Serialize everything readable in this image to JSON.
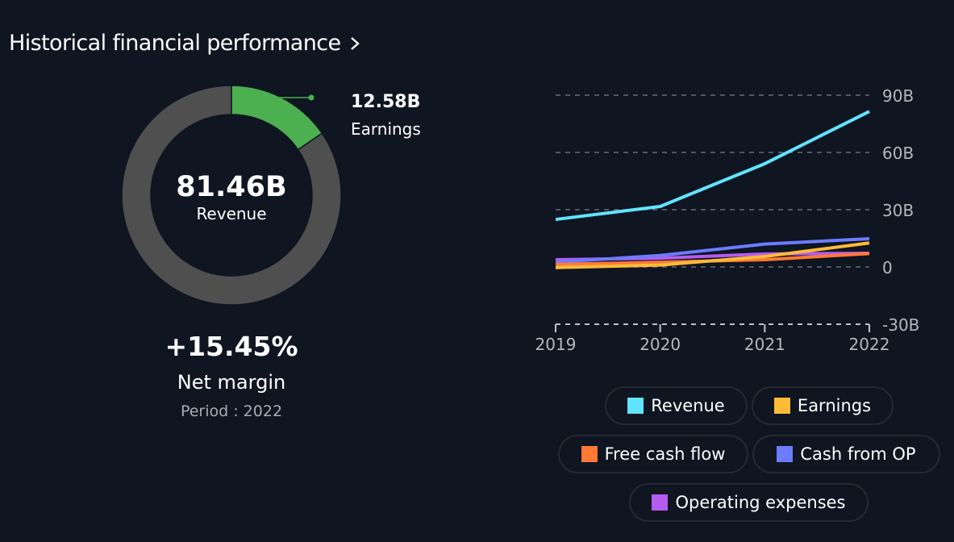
{
  "header": {
    "title": "Historical financial performance"
  },
  "donut": {
    "center_value": "81.46B",
    "center_label": "Revenue",
    "slice_value": "12.58B",
    "slice_label": "Earnings",
    "slice_fraction": 0.1545,
    "colors": {
      "slice": "#4caf50",
      "rest": "#4f4f4f"
    },
    "net_margin_value": "+15.45%",
    "net_margin_label": "Net margin",
    "period": "Period : 2022"
  },
  "chart_data": {
    "type": "line",
    "title": "",
    "xlabel": "",
    "ylabel": "",
    "x": [
      "2019",
      "2020",
      "2021",
      "2022"
    ],
    "ylim": [
      -30,
      90
    ],
    "yticks": [
      -30,
      0,
      30,
      60,
      90
    ],
    "ytick_labels": [
      "-30B",
      "0",
      "30B",
      "60B",
      "90B"
    ],
    "grid": true,
    "legend_placement": "bottom",
    "series": [
      {
        "name": "Revenue",
        "color": "#61e4ff",
        "values": [
          24.9,
          31.7,
          54.1,
          81.46
        ]
      },
      {
        "name": "Earnings",
        "color": "#ffbb38",
        "values": [
          -0.3,
          1.0,
          5.5,
          12.58
        ]
      },
      {
        "name": "Free cash flow",
        "color": "#ff7a36",
        "values": [
          1.3,
          2.5,
          3.8,
          7.0
        ]
      },
      {
        "name": "Cash from OP",
        "color": "#6b7cff",
        "values": [
          2.5,
          6.0,
          12.0,
          14.8
        ]
      },
      {
        "name": "Operating expenses",
        "color": "#b45cf0",
        "values": [
          3.8,
          4.6,
          6.8,
          7.2
        ]
      }
    ]
  }
}
